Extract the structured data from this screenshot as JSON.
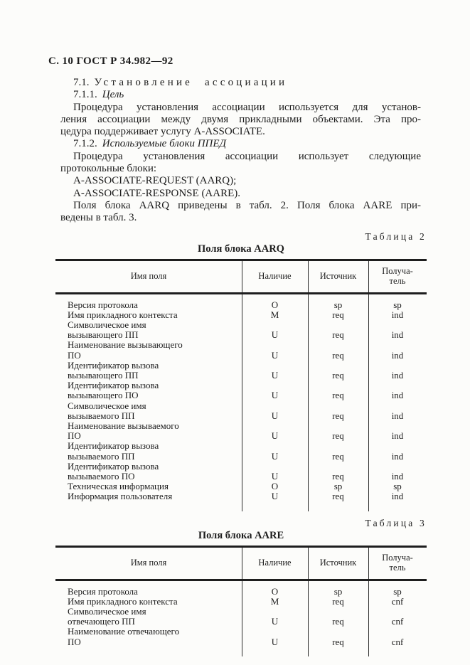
{
  "page": {
    "header": "С. 10 ГОСТ Р 34.982—92"
  },
  "content": {
    "blocks": [
      {
        "type": "heading",
        "number": "7.1.",
        "title": "Установление ассоциации",
        "style": "sparse"
      },
      {
        "type": "heading",
        "number": "7.1.1.",
        "title": "Цель",
        "style": "italic"
      },
      {
        "type": "para",
        "lines": [
          "Процедура установления ассоциации используется для установ-",
          "ления ассоциации между двумя прикладными объектами. Эта про-",
          "цедура поддерживает услугу A-ASSOCIATE."
        ]
      },
      {
        "type": "heading",
        "number": "7.1.2.",
        "title": "Используемые блоки ППЕД",
        "style": "italic"
      },
      {
        "type": "para",
        "lines": [
          "Процедура установления ассоциации использует следующие",
          "протокольные блоки:"
        ]
      },
      {
        "type": "plain",
        "text": "A-ASSOCIATE-REQUEST (AARQ);"
      },
      {
        "type": "plain",
        "text": "A-ASSOCIATE-RESPONSE (AARE)."
      },
      {
        "type": "para",
        "lines": [
          "Поля блока AARQ приведены в табл. 2. Поля блока AARE при-",
          "ведены в табл. 3."
        ]
      }
    ]
  },
  "tables": [
    {
      "label": "Таблица 2",
      "caption": "Поля блока AARQ",
      "columns": [
        "Имя поля",
        "Наличие",
        "Источник",
        "Получа-\nтель"
      ],
      "rows": [
        {
          "name": [
            "Версия протокола"
          ],
          "availability": "O",
          "source": "sp",
          "receiver": "sp"
        },
        {
          "name": [
            "Имя прикладного контекста"
          ],
          "availability": "M",
          "source": "req",
          "receiver": "ind"
        },
        {
          "name": [
            "Символическое имя",
            "вызывающего ПП"
          ],
          "availability": "U",
          "source": "req",
          "receiver": "ind"
        },
        {
          "name": [
            "Наименование вызывающего",
            "ПО"
          ],
          "availability": "U",
          "source": "req",
          "receiver": "ind"
        },
        {
          "name": [
            "Идентификатор вызова",
            "вызывающего ПП"
          ],
          "availability": "U",
          "source": "req",
          "receiver": "ind"
        },
        {
          "name": [
            "Идентификатор вызова",
            "вызывающего ПО"
          ],
          "availability": "U",
          "source": "req",
          "receiver": "ind"
        },
        {
          "name": [
            "Символическое имя",
            "вызываемого ПП"
          ],
          "availability": "U",
          "source": "req",
          "receiver": "ind"
        },
        {
          "name": [
            "Наименование вызываемого",
            "ПО"
          ],
          "availability": "U",
          "source": "req",
          "receiver": "ind"
        },
        {
          "name": [
            "Идентификатор вызова",
            "вызываемого ПП"
          ],
          "availability": "U",
          "source": "req",
          "receiver": "ind"
        },
        {
          "name": [
            "Идентификатор вызова",
            "вызываемого ПО"
          ],
          "availability": "U",
          "source": "req",
          "receiver": "ind"
        },
        {
          "name": [
            "Техническая информация"
          ],
          "availability": "O",
          "source": "sp",
          "receiver": "sp"
        },
        {
          "name": [
            "Информация пользователя"
          ],
          "availability": "U",
          "source": "req",
          "receiver": "ind"
        }
      ]
    },
    {
      "label": "Таблица 3",
      "caption": "Поля блока AARE",
      "columns": [
        "Имя поля",
        "Наличие",
        "Источник",
        "Получа-\nтель"
      ],
      "rows": [
        {
          "name": [
            "Версия протокола"
          ],
          "availability": "O",
          "source": "sp",
          "receiver": "sp"
        },
        {
          "name": [
            "Имя прикладного контекста"
          ],
          "availability": "M",
          "source": "req",
          "receiver": "cnf"
        },
        {
          "name": [
            "Символическое имя",
            "отвечающего ПП"
          ],
          "availability": "U",
          "source": "req",
          "receiver": "cnf"
        },
        {
          "name": [
            "Наименование отвечающего",
            "ПО"
          ],
          "availability": "U",
          "source": "req",
          "receiver": "cnf"
        }
      ]
    }
  ]
}
